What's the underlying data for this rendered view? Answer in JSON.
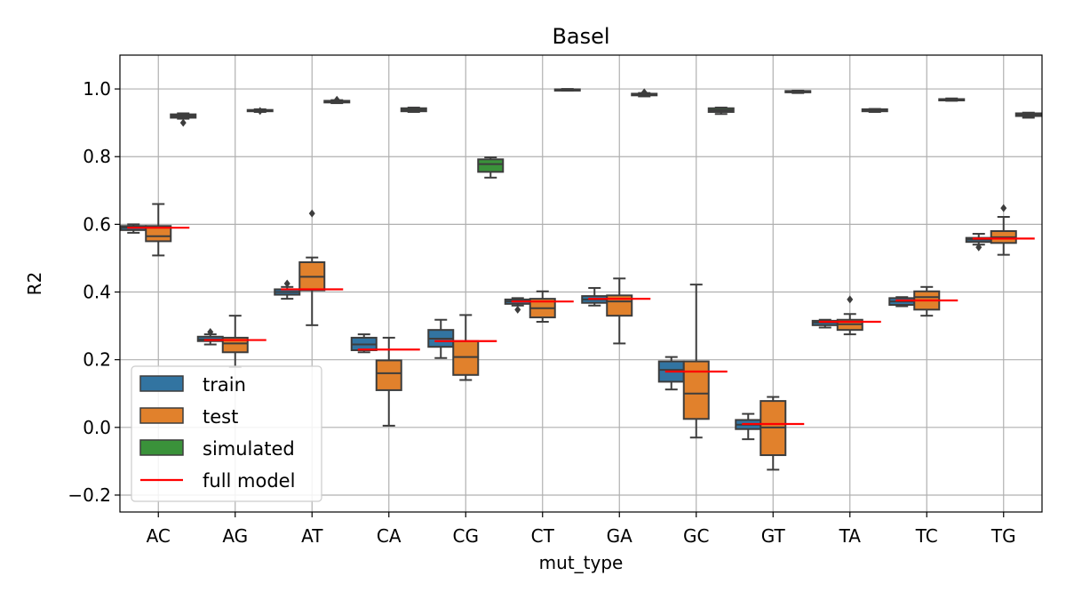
{
  "chart_data": {
    "type": "box",
    "title": "Basel",
    "xlabel": "mut_type",
    "ylabel": "R2",
    "ylim": [
      -0.25,
      1.1
    ],
    "yticks": [
      -0.2,
      0.0,
      0.2,
      0.4,
      0.6,
      0.8,
      1.0
    ],
    "ytick_labels": [
      "−0.2",
      "0.0",
      "0.2",
      "0.4",
      "0.6",
      "0.8",
      "1.0"
    ],
    "grid": true,
    "legend_position": "lower-left",
    "categories": [
      "AC",
      "AG",
      "AT",
      "CA",
      "CG",
      "CT",
      "GA",
      "GC",
      "GT",
      "TA",
      "TC",
      "TG"
    ],
    "series": [
      {
        "name": "train",
        "color": "#3274a1",
        "boxes": [
          {
            "category": "AC",
            "q1": 0.583,
            "median": 0.59,
            "q3": 0.595,
            "whisker_low": 0.575,
            "whisker_high": 0.6,
            "outliers": []
          },
          {
            "category": "AG",
            "q1": 0.255,
            "median": 0.26,
            "q3": 0.268,
            "whisker_low": 0.245,
            "whisker_high": 0.275,
            "outliers": [
              0.282
            ]
          },
          {
            "category": "AT",
            "q1": 0.392,
            "median": 0.4,
            "q3": 0.408,
            "whisker_low": 0.38,
            "whisker_high": 0.415,
            "outliers": [
              0.425
            ]
          },
          {
            "category": "CA",
            "q1": 0.228,
            "median": 0.245,
            "q3": 0.265,
            "whisker_low": 0.222,
            "whisker_high": 0.275,
            "outliers": []
          },
          {
            "category": "CG",
            "q1": 0.238,
            "median": 0.262,
            "q3": 0.288,
            "whisker_low": 0.205,
            "whisker_high": 0.318,
            "outliers": []
          },
          {
            "category": "CT",
            "q1": 0.365,
            "median": 0.372,
            "q3": 0.378,
            "whisker_low": 0.36,
            "whisker_high": 0.382,
            "outliers": [
              0.348
            ]
          },
          {
            "category": "GA",
            "q1": 0.368,
            "median": 0.378,
            "q3": 0.388,
            "whisker_low": 0.36,
            "whisker_high": 0.412,
            "outliers": []
          },
          {
            "category": "GC",
            "q1": 0.135,
            "median": 0.17,
            "q3": 0.195,
            "whisker_low": 0.112,
            "whisker_high": 0.208,
            "outliers": []
          },
          {
            "category": "GT",
            "q1": -0.005,
            "median": 0.008,
            "q3": 0.022,
            "whisker_low": -0.035,
            "whisker_high": 0.04,
            "outliers": []
          },
          {
            "category": "TA",
            "q1": 0.302,
            "median": 0.31,
            "q3": 0.315,
            "whisker_low": 0.295,
            "whisker_high": 0.318,
            "outliers": []
          },
          {
            "category": "TC",
            "q1": 0.362,
            "median": 0.372,
            "q3": 0.382,
            "whisker_low": 0.358,
            "whisker_high": 0.385,
            "outliers": []
          },
          {
            "category": "TG",
            "q1": 0.548,
            "median": 0.555,
            "q3": 0.56,
            "whisker_low": 0.54,
            "whisker_high": 0.572,
            "outliers": [
              0.532
            ]
          }
        ]
      },
      {
        "name": "test",
        "color": "#e1812c",
        "boxes": [
          {
            "category": "AC",
            "q1": 0.55,
            "median": 0.565,
            "q3": 0.595,
            "whisker_low": 0.508,
            "whisker_high": 0.66,
            "outliers": []
          },
          {
            "category": "AG",
            "q1": 0.222,
            "median": 0.248,
            "q3": 0.265,
            "whisker_low": 0.178,
            "whisker_high": 0.33,
            "outliers": []
          },
          {
            "category": "AT",
            "q1": 0.405,
            "median": 0.445,
            "q3": 0.488,
            "whisker_low": 0.302,
            "whisker_high": 0.502,
            "outliers": [
              0.632
            ]
          },
          {
            "category": "CA",
            "q1": 0.11,
            "median": 0.16,
            "q3": 0.198,
            "whisker_low": 0.005,
            "whisker_high": 0.265,
            "outliers": []
          },
          {
            "category": "CG",
            "q1": 0.155,
            "median": 0.208,
            "q3": 0.255,
            "whisker_low": 0.14,
            "whisker_high": 0.332,
            "outliers": []
          },
          {
            "category": "CT",
            "q1": 0.325,
            "median": 0.352,
            "q3": 0.38,
            "whisker_low": 0.312,
            "whisker_high": 0.402,
            "outliers": []
          },
          {
            "category": "GA",
            "q1": 0.33,
            "median": 0.372,
            "q3": 0.39,
            "whisker_low": 0.248,
            "whisker_high": 0.44,
            "outliers": []
          },
          {
            "category": "GC",
            "q1": 0.025,
            "median": 0.1,
            "q3": 0.195,
            "whisker_low": -0.03,
            "whisker_high": 0.422,
            "outliers": []
          },
          {
            "category": "GT",
            "q1": -0.082,
            "median": 0.0,
            "q3": 0.078,
            "whisker_low": -0.125,
            "whisker_high": 0.09,
            "outliers": []
          },
          {
            "category": "TA",
            "q1": 0.288,
            "median": 0.305,
            "q3": 0.318,
            "whisker_low": 0.275,
            "whisker_high": 0.335,
            "outliers": [
              0.378
            ]
          },
          {
            "category": "TC",
            "q1": 0.348,
            "median": 0.385,
            "q3": 0.402,
            "whisker_low": 0.33,
            "whisker_high": 0.415,
            "outliers": []
          },
          {
            "category": "TG",
            "q1": 0.545,
            "median": 0.562,
            "q3": 0.58,
            "whisker_low": 0.51,
            "whisker_high": 0.622,
            "outliers": [
              0.648
            ]
          }
        ]
      },
      {
        "name": "simulated",
        "color": "#3a923a",
        "boxes": [
          {
            "category": "AC",
            "q1": 0.915,
            "median": 0.92,
            "q3": 0.925,
            "whisker_low": 0.912,
            "whisker_high": 0.928,
            "outliers": [
              0.9
            ]
          },
          {
            "category": "AG",
            "q1": 0.934,
            "median": 0.936,
            "q3": 0.938,
            "whisker_low": 0.932,
            "whisker_high": 0.94,
            "outliers": [
              0.935
            ]
          },
          {
            "category": "AT",
            "q1": 0.96,
            "median": 0.963,
            "q3": 0.965,
            "whisker_low": 0.958,
            "whisker_high": 0.967,
            "outliers": [
              0.968
            ]
          },
          {
            "category": "CA",
            "q1": 0.934,
            "median": 0.938,
            "q3": 0.943,
            "whisker_low": 0.932,
            "whisker_high": 0.945,
            "outliers": []
          },
          {
            "category": "CG",
            "q1": 0.755,
            "median": 0.778,
            "q3": 0.792,
            "whisker_low": 0.738,
            "whisker_high": 0.798,
            "outliers": []
          },
          {
            "category": "CT",
            "q1": 0.996,
            "median": 0.998,
            "q3": 0.999,
            "whisker_low": 0.995,
            "whisker_high": 1.0,
            "outliers": []
          },
          {
            "category": "GA",
            "q1": 0.981,
            "median": 0.984,
            "q3": 0.986,
            "whisker_low": 0.978,
            "whisker_high": 0.988,
            "outliers": [
              0.99
            ]
          },
          {
            "category": "GC",
            "q1": 0.932,
            "median": 0.937,
            "q3": 0.943,
            "whisker_low": 0.926,
            "whisker_high": 0.945,
            "outliers": []
          },
          {
            "category": "GT",
            "q1": 0.99,
            "median": 0.992,
            "q3": 0.994,
            "whisker_low": 0.988,
            "whisker_high": 0.995,
            "outliers": []
          },
          {
            "category": "TA",
            "q1": 0.934,
            "median": 0.937,
            "q3": 0.94,
            "whisker_low": 0.932,
            "whisker_high": 0.941,
            "outliers": []
          },
          {
            "category": "TC",
            "q1": 0.967,
            "median": 0.969,
            "q3": 0.97,
            "whisker_low": 0.965,
            "whisker_high": 0.972,
            "outliers": []
          },
          {
            "category": "TG",
            "q1": 0.92,
            "median": 0.924,
            "q3": 0.928,
            "whisker_low": 0.915,
            "whisker_high": 0.93,
            "outliers": []
          }
        ]
      }
    ],
    "reference_line": {
      "name": "full model",
      "color": "#ff0000",
      "values": [
        0.59,
        0.258,
        0.408,
        0.23,
        0.255,
        0.372,
        0.38,
        0.165,
        0.01,
        0.312,
        0.375,
        0.558
      ]
    }
  }
}
